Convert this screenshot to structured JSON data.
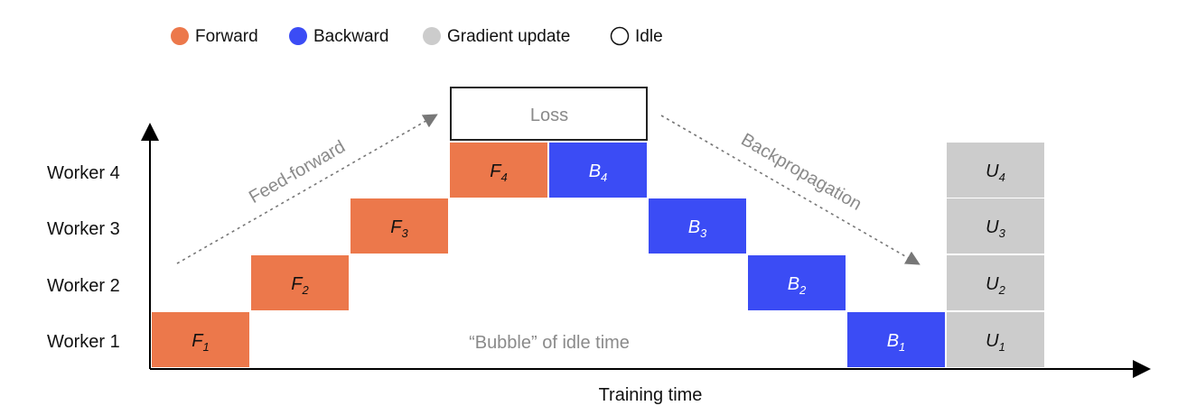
{
  "colors": {
    "forward": "#EC784B",
    "backward": "#3B4CF5",
    "gradient_update": "#CCCCCC",
    "idle": "#FFFFFF",
    "annotation": "#8A8A8A"
  },
  "legend": [
    {
      "label": "Forward",
      "key": "forward"
    },
    {
      "label": "Backward",
      "key": "backward"
    },
    {
      "label": "Gradient update",
      "key": "gradient_update"
    },
    {
      "label": "Idle",
      "key": "idle"
    }
  ],
  "workers": [
    "Worker 1",
    "Worker 2",
    "Worker 3",
    "Worker 4"
  ],
  "x_axis_label": "Training time",
  "loss_label": "Loss",
  "feed_forward_label": "Feed-forward",
  "backprop_label": "Backpropagation",
  "bubble_label": "“Bubble” of idle time",
  "blocks": [
    {
      "letter": "F",
      "sub": "1",
      "type": "forward",
      "worker": 1,
      "step": 0
    },
    {
      "letter": "F",
      "sub": "2",
      "type": "forward",
      "worker": 2,
      "step": 1
    },
    {
      "letter": "F",
      "sub": "3",
      "type": "forward",
      "worker": 3,
      "step": 2
    },
    {
      "letter": "F",
      "sub": "4",
      "type": "forward",
      "worker": 4,
      "step": 3
    },
    {
      "letter": "B",
      "sub": "4",
      "type": "backward",
      "worker": 4,
      "step": 4
    },
    {
      "letter": "B",
      "sub": "3",
      "type": "backward",
      "worker": 3,
      "step": 5
    },
    {
      "letter": "B",
      "sub": "2",
      "type": "backward",
      "worker": 2,
      "step": 6
    },
    {
      "letter": "B",
      "sub": "1",
      "type": "backward",
      "worker": 1,
      "step": 7
    },
    {
      "letter": "U",
      "sub": "1",
      "type": "gradient_update",
      "worker": 1,
      "step": 8
    },
    {
      "letter": "U",
      "sub": "2",
      "type": "gradient_update",
      "worker": 2,
      "step": 8
    },
    {
      "letter": "U",
      "sub": "3",
      "type": "gradient_update",
      "worker": 3,
      "step": 8
    },
    {
      "letter": "U",
      "sub": "4",
      "type": "gradient_update",
      "worker": 4,
      "step": 8
    }
  ]
}
